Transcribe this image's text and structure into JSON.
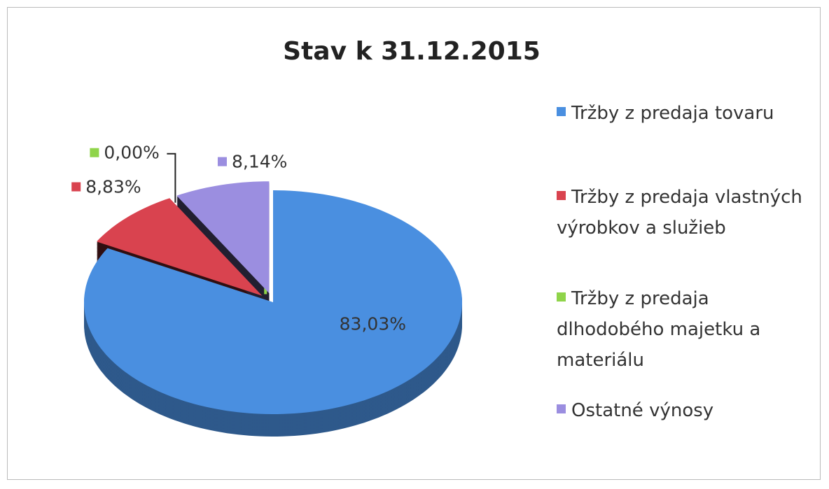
{
  "chart_data": {
    "type": "pie",
    "title": "Stav k 31.12.2015",
    "categories": [
      "Tržby z predaja tovaru",
      "Tržby z predaja vlastných výrobkov a služieb",
      "Tržby z predaja dlhodobého majetku a materiálu",
      "Ostatné výnosy"
    ],
    "values": [
      83.03,
      8.83,
      0,
      8.14
    ],
    "value_labels": [
      "83,03%",
      "8,83%",
      "0,00%",
      "8,14%"
    ],
    "colors": [
      "#4a8fe0",
      "#d9434f",
      "#8fd44a",
      "#9b8ee0"
    ],
    "legend": "right"
  }
}
